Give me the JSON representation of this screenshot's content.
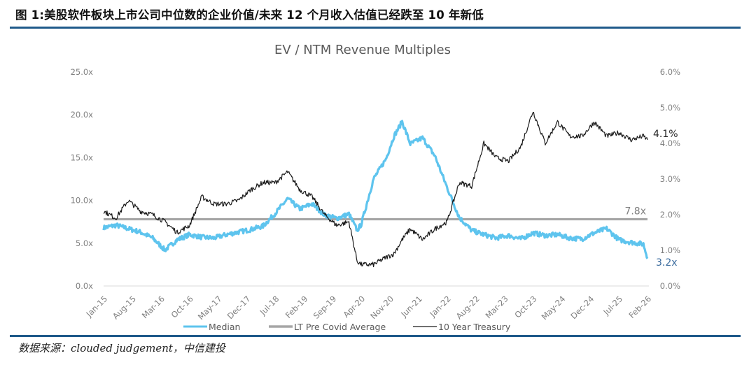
{
  "figure": {
    "title": "图 1:美股软件板块上市公司中位数的企业价值/未来 12 个月收入估值已经跌至 10 年新低",
    "source": "数据来源：clouded judgement，中信建投"
  },
  "colors": {
    "median": "#5ec4ee",
    "lt_average": "#a6a6a6",
    "treasury": "#1a1a1a",
    "rule": "#1f5a8a",
    "median_label": "#3a6b9e"
  },
  "chart_data": {
    "type": "line",
    "title": "EV / NTM Revenue Multiples",
    "xlabel": "",
    "ylabel": "",
    "x_tick_labels": [
      "Jan-15",
      "Aug-15",
      "Mar-16",
      "Oct-16",
      "May-17",
      "Dec-17",
      "Jul-18",
      "Feb-19",
      "Sep-19",
      "Apr-20",
      "Nov-20",
      "Jun-21",
      "Jan-22",
      "Aug-22",
      "Mar-23",
      "Oct-23",
      "May-24",
      "Dec-24",
      "Jul-25",
      "Feb-26"
    ],
    "y_left": {
      "ticks": [
        "0.0x",
        "5.0x",
        "10.0x",
        "15.0x",
        "20.0x",
        "25.0x"
      ],
      "ylim": [
        0,
        25
      ]
    },
    "y_right": {
      "ticks": [
        "0.0%",
        "1.0%",
        "2.0%",
        "3.0%",
        "4.0%",
        "5.0%",
        "6.0%"
      ],
      "ylim": [
        0,
        6
      ]
    },
    "grid": false,
    "legend_position": "bottom",
    "x_months": [
      "2015-01",
      "2015-04",
      "2015-07",
      "2015-10",
      "2016-01",
      "2016-04",
      "2016-07",
      "2016-10",
      "2017-01",
      "2017-04",
      "2017-07",
      "2017-10",
      "2018-01",
      "2018-04",
      "2018-07",
      "2018-10",
      "2019-01",
      "2019-04",
      "2019-07",
      "2019-10",
      "2020-01",
      "2020-03",
      "2020-04",
      "2020-07",
      "2020-10",
      "2020-12",
      "2021-02",
      "2021-04",
      "2021-07",
      "2021-10",
      "2022-01",
      "2022-04",
      "2022-07",
      "2022-10",
      "2023-01",
      "2023-04",
      "2023-07",
      "2023-10",
      "2024-01",
      "2024-04",
      "2024-07",
      "2024-10",
      "2025-01",
      "2025-04",
      "2025-07",
      "2025-10",
      "2026-01",
      "2026-02"
    ],
    "series": [
      {
        "name": "Median",
        "axis": "left",
        "values": [
          6.8,
          7.1,
          6.7,
          6.3,
          5.6,
          4.2,
          5.4,
          6.0,
          5.7,
          5.6,
          6.0,
          6.3,
          6.6,
          7.0,
          8.5,
          10.2,
          9.0,
          9.6,
          8.3,
          7.9,
          8.4,
          6.5,
          7.2,
          12.5,
          14.8,
          17.5,
          19.2,
          16.6,
          17.3,
          15.2,
          11.5,
          8.0,
          6.5,
          6.0,
          5.6,
          5.9,
          5.5,
          6.2,
          5.9,
          6.0,
          5.6,
          5.5,
          6.2,
          6.7,
          5.4,
          5.1,
          4.9,
          3.2
        ]
      },
      {
        "name": "LT Pre Covid Average",
        "axis": "left",
        "values": [
          7.8,
          7.8,
          7.8,
          7.8,
          7.8,
          7.8,
          7.8,
          7.8,
          7.8,
          7.8,
          7.8,
          7.8,
          7.8,
          7.8,
          7.8,
          7.8,
          7.8,
          7.8,
          7.8,
          7.8,
          7.8,
          7.8,
          7.8,
          7.8,
          7.8,
          7.8,
          7.8,
          7.8,
          7.8,
          7.8,
          7.8,
          7.8,
          7.8,
          7.8,
          7.8,
          7.8,
          7.8,
          7.8,
          7.8,
          7.8,
          7.8,
          7.8,
          7.8,
          7.8,
          7.8,
          7.8,
          7.8,
          7.8
        ]
      },
      {
        "name": "10 Year Treasury",
        "axis": "right",
        "values": [
          2.1,
          1.9,
          2.4,
          2.1,
          2.0,
          1.8,
          1.5,
          1.7,
          2.5,
          2.3,
          2.3,
          2.4,
          2.7,
          2.9,
          2.9,
          3.2,
          2.7,
          2.5,
          2.0,
          1.7,
          1.8,
          0.7,
          0.6,
          0.6,
          0.8,
          0.9,
          1.3,
          1.6,
          1.3,
          1.6,
          1.8,
          2.9,
          2.8,
          4.0,
          3.6,
          3.5,
          3.9,
          4.9,
          4.0,
          4.6,
          4.2,
          4.2,
          4.6,
          4.2,
          4.3,
          4.1,
          4.2,
          4.1
        ]
      }
    ],
    "annotations": [
      {
        "text": "4.1%",
        "series": "10 Year Treasury",
        "position": "right-end"
      },
      {
        "text": "7.8x",
        "series": "LT Pre Covid Average",
        "position": "above-right-end"
      },
      {
        "text": "3.2x",
        "series": "Median",
        "position": "right-end"
      }
    ],
    "legend": [
      "Median",
      "LT Pre Covid Average",
      "10 Year Treasury"
    ]
  }
}
